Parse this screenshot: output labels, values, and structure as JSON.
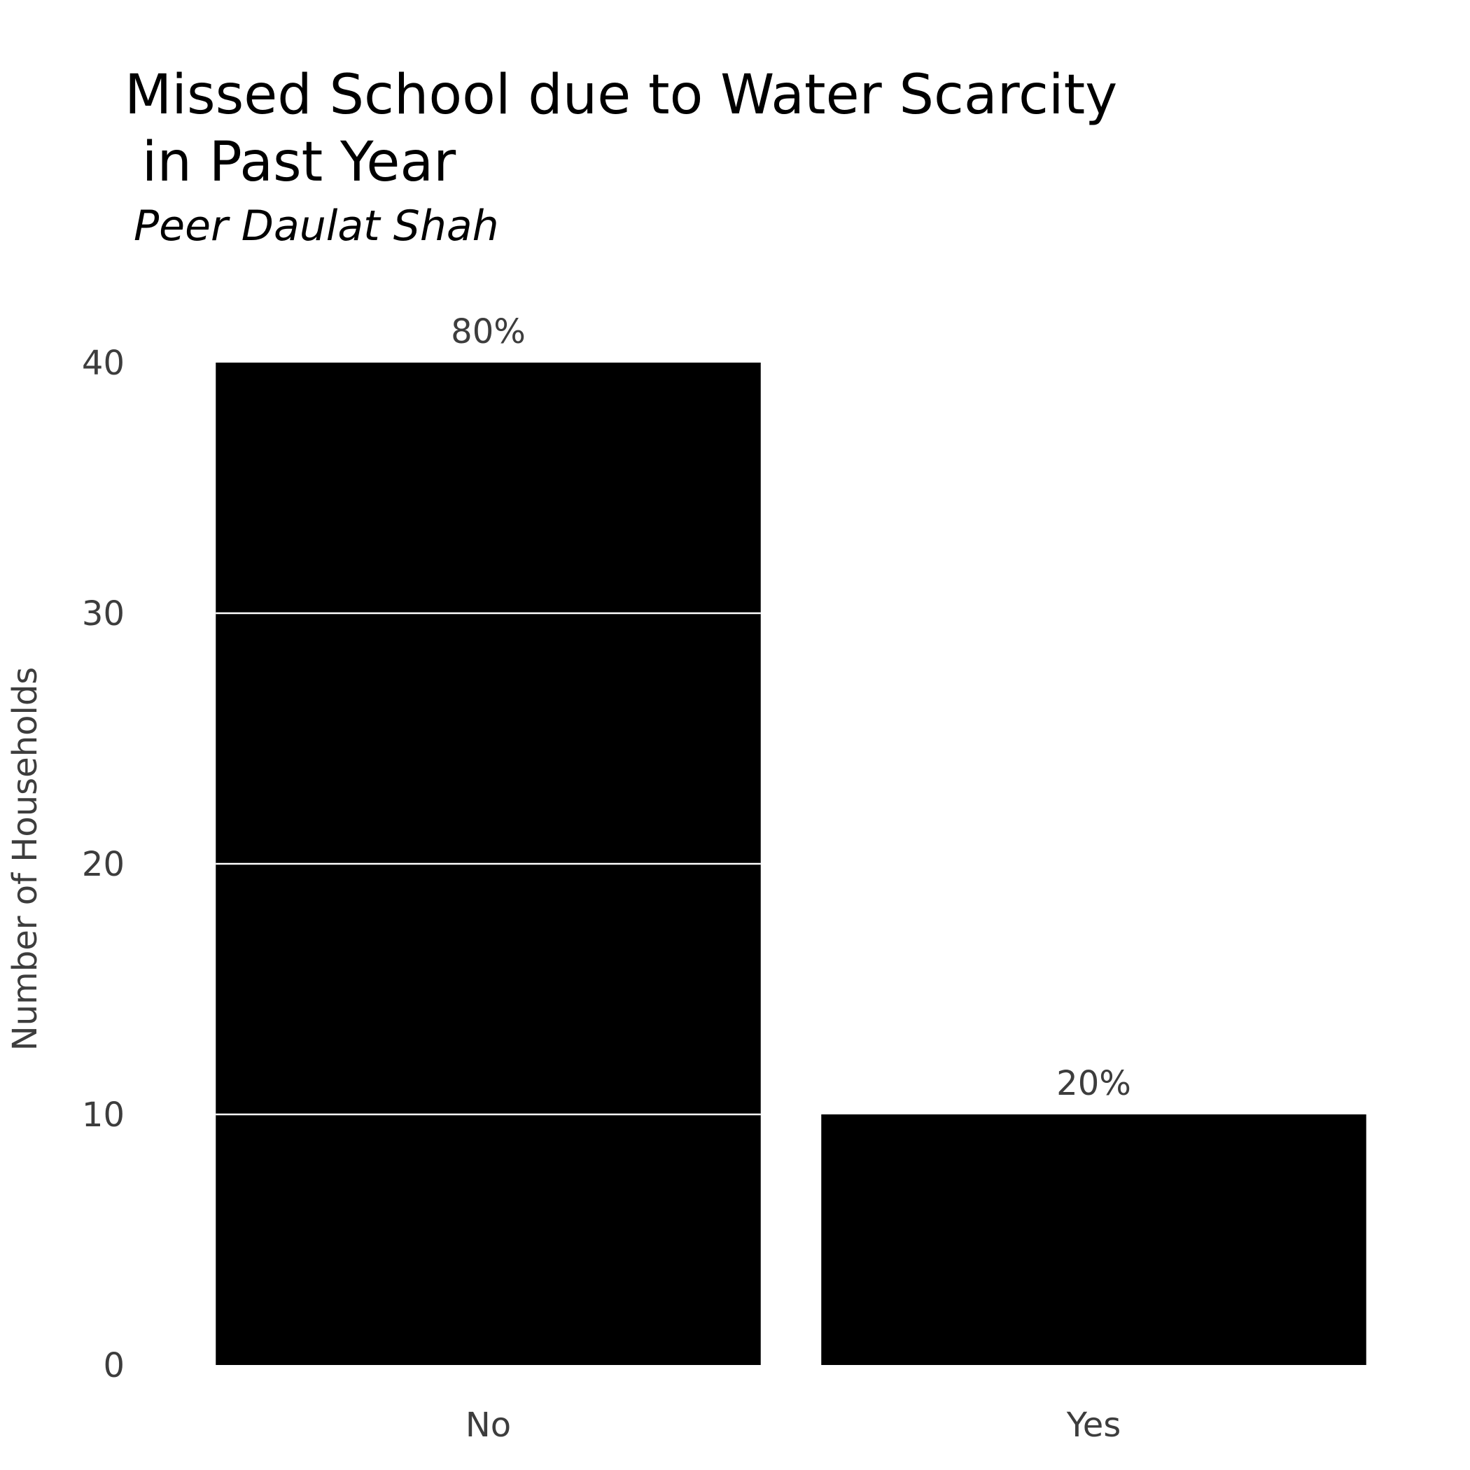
{
  "chart_data": {
    "type": "bar",
    "title": "Missed School due to Water Scarcity\n in Past Year",
    "subtitle": "Peer Daulat Shah",
    "xlabel": "",
    "ylabel": "Number of Households",
    "categories": [
      "No",
      "Yes"
    ],
    "values": [
      40,
      10
    ],
    "data_labels": [
      "80%",
      "20%"
    ],
    "yticks": [
      0,
      10,
      20,
      30,
      40
    ],
    "ylim": [
      0,
      40
    ],
    "grid": true,
    "legend": "none",
    "bar_color": "#000000",
    "grid_color": "#ffffff"
  }
}
